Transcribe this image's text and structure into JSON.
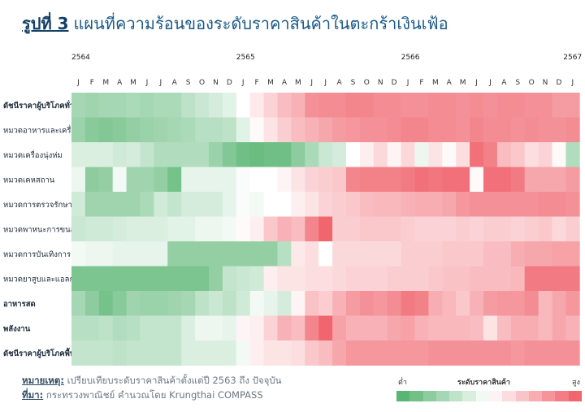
{
  "figure": {
    "number": "รูปที่ 3",
    "title": "แผนที่ความร้อนของระดับราคาสินค้าในตะกร้าเงินเฟ้อ"
  },
  "note": {
    "label": "หมายเหตุ:",
    "text": "เปรียบเทียบระดับราคาสินค้าตั้งแต่ปี 2563 ถึง ปัจจุบัน"
  },
  "source": {
    "label": "ที่มา:",
    "text": "กระทรวงพาณิชย์ คำนวณโดย Krungthai COMPASS"
  },
  "legend": {
    "title": "ระดับราคาสินค้า",
    "low": "ต่ำ",
    "high": "สูง"
  },
  "colors": {
    "low": "#4caf68",
    "mid": "#ffffff",
    "high": "#ef5a64"
  },
  "chart_data": {
    "type": "heatmap",
    "title": "แผนที่ความร้อนของระดับราคาสินค้าในตะกร้าเงินเฟ้อ",
    "years": [
      "2564",
      "2565",
      "2566",
      "2567"
    ],
    "months": [
      "J",
      "F",
      "M",
      "A",
      "M",
      "J",
      "J",
      "A",
      "S",
      "O",
      "N",
      "D",
      "J",
      "F",
      "M",
      "A",
      "M",
      "J",
      "J",
      "A",
      "S",
      "O",
      "N",
      "D",
      "J",
      "F",
      "M",
      "A",
      "M",
      "J",
      "J",
      "A",
      "S",
      "O",
      "N",
      "D",
      "J"
    ],
    "scale": [
      -3,
      3
    ],
    "rows": [
      {
        "label": "ดัชนีราคาผู้บริโภคทั่วไป",
        "bold": true,
        "values": [
          -1.5,
          -1.6,
          -1.5,
          -1.5,
          -1.4,
          -1.5,
          -1.4,
          -1.4,
          -1.1,
          -0.9,
          -0.7,
          -0.5,
          0,
          0.4,
          0.8,
          1.2,
          1.4,
          2.0,
          2.1,
          2.1,
          2.2,
          2.2,
          2.1,
          2.1,
          2.0,
          2.0,
          2.1,
          2.1,
          2.0,
          2.1,
          2.0,
          2.1,
          2.1,
          2.0,
          2.0,
          1.8,
          1.8
        ]
      },
      {
        "label": "หมวดอาหารและเครื่องดื่ม",
        "bold": false,
        "values": [
          -1.7,
          -2.0,
          -2.1,
          -2.0,
          -1.8,
          -1.7,
          -1.6,
          -1.5,
          -1.4,
          -1.2,
          -1.2,
          -1.1,
          -0.5,
          0.1,
          0.5,
          0.9,
          1.2,
          1.4,
          1.6,
          1.8,
          1.9,
          2.0,
          2.0,
          2.1,
          2.2,
          2.2,
          2.1,
          2.1,
          2.0,
          2.2,
          2.1,
          2.1,
          2.0,
          2.1,
          2.0,
          2.0,
          2.1
        ]
      },
      {
        "label": "หมวดเครื่องนุ่งห่ม",
        "bold": false,
        "values": [
          -0.6,
          -0.6,
          -0.6,
          -0.8,
          -0.7,
          -1.0,
          -1.3,
          -1.3,
          -1.3,
          -1.3,
          -1.7,
          -2.1,
          -2.4,
          -2.5,
          -2.4,
          -2.4,
          -1.9,
          -1.4,
          -0.9,
          -0.7,
          0,
          0.3,
          0.7,
          0.2,
          0.7,
          -0.3,
          0.5,
          0.1,
          0.6,
          2.6,
          2.3,
          1.2,
          1.0,
          0.6,
          0.8,
          0.1,
          -1.3
        ]
      },
      {
        "label": "หมวดเคหสถาน",
        "bold": false,
        "values": [
          -0.3,
          -1.9,
          -1.8,
          -0.2,
          -1.6,
          -1.6,
          -1.8,
          -2.3,
          -0.4,
          -0.4,
          -0.4,
          -0.4,
          -0.1,
          0,
          0,
          0.2,
          0.5,
          0.8,
          0.9,
          1.0,
          2.2,
          2.3,
          2.3,
          2.3,
          2.4,
          2.6,
          2.5,
          2.6,
          2.6,
          0.1,
          2.6,
          2.6,
          2.4,
          1.6,
          1.6,
          1.6,
          1.8
        ]
      },
      {
        "label": "หมวดการตรวจรักษาฯ",
        "bold": false,
        "values": [
          -0.8,
          -1.6,
          -1.6,
          -1.6,
          -1.6,
          -1.4,
          -0.8,
          -1.0,
          -0.7,
          -0.7,
          -0.7,
          -0.4,
          -0.1,
          -0.2,
          0,
          0,
          0.3,
          0.5,
          0.8,
          0.9,
          1.0,
          1.2,
          1.3,
          1.3,
          1.4,
          1.5,
          1.5,
          1.6,
          1.9,
          2.0,
          2.0,
          2.0,
          2.0,
          2.0,
          2.1,
          2.1,
          2.0
        ]
      },
      {
        "label": "หมวดพาหนะการขนส่งฯ",
        "bold": false,
        "values": [
          -0.9,
          -0.8,
          -0.8,
          -0.7,
          -0.6,
          -0.6,
          -0.6,
          -0.5,
          -0.5,
          -0.3,
          -0.3,
          -0.2,
          0.1,
          0.3,
          1.0,
          1.4,
          1.2,
          2.2,
          2.8,
          0.9,
          0.9,
          1.0,
          1.0,
          1.0,
          0.9,
          0.8,
          0.8,
          0.8,
          0.9,
          0.8,
          0.9,
          0.9,
          0.8,
          0.9,
          1.0,
          0.7,
          0.9
        ]
      },
      {
        "label": "หมวดการบันเทิงการอ่านฯ",
        "bold": false,
        "values": [
          -0.2,
          -0.3,
          -0.3,
          -0.4,
          -0.4,
          -0.4,
          -0.4,
          -1.8,
          -1.8,
          -1.8,
          -1.8,
          -1.8,
          -1.8,
          -1.8,
          -1.8,
          -1.2,
          0.4,
          0.6,
          0,
          0.7,
          0.7,
          0.7,
          0.7,
          0.7,
          0.9,
          0.9,
          0.9,
          1.0,
          1.0,
          1.0,
          1.2,
          1.2,
          1.5,
          1.6,
          1.6,
          1.7,
          1.7
        ]
      },
      {
        "label": "หมวดยาสูบและแอลกอฮอล์",
        "bold": false,
        "values": [
          -2.2,
          -2.2,
          -2.2,
          -2.2,
          -2.2,
          -2.2,
          -2.2,
          -2.2,
          -2.2,
          -2.2,
          -1.8,
          -1.0,
          -0.9,
          -0.8,
          0.3,
          0.5,
          0.5,
          0.6,
          0.6,
          0.7,
          0.8,
          0.8,
          0.8,
          0.9,
          0.9,
          0.9,
          1.0,
          1.1,
          1.1,
          1.2,
          1.2,
          1.2,
          1.3,
          2.4,
          2.4,
          2.4,
          2.4
        ]
      },
      {
        "label": "อาหารสด",
        "bold": true,
        "values": [
          -1.5,
          -1.9,
          -2.3,
          -2.0,
          -1.6,
          -1.7,
          -1.7,
          -1.6,
          -1.5,
          -1.1,
          -0.9,
          -1.1,
          -0.8,
          -0.2,
          -0.4,
          -0.7,
          0.2,
          1.1,
          0.9,
          1.4,
          1.8,
          2.0,
          1.9,
          2.1,
          2.4,
          2.3,
          1.5,
          1.3,
          1.0,
          1.4,
          1.8,
          1.9,
          1.9,
          2.1,
          1.3,
          1.6,
          1.9
        ]
      },
      {
        "label": "พลังงาน",
        "bold": true,
        "values": [
          -1.2,
          -1.2,
          -1.1,
          -1.3,
          -1.2,
          -1.0,
          -1.0,
          -1.0,
          -0.6,
          -0.3,
          -0.3,
          -0.4,
          0.2,
          0.3,
          0.8,
          1.4,
          1.2,
          2.2,
          2.8,
          1.7,
          1.4,
          1.4,
          1.4,
          1.6,
          1.7,
          1.4,
          1.3,
          1.3,
          1.3,
          1.2,
          0.5,
          1.2,
          1.5,
          1.5,
          1.3,
          1.6,
          1.4
        ]
      },
      {
        "label": "ดัชนีราคาผู้บริโภคพื้นฐาน",
        "bold": true,
        "values": [
          -1.0,
          -1.0,
          -1.0,
          -1.1,
          -1.0,
          -1.0,
          -1.0,
          -1.0,
          -0.6,
          -0.6,
          -0.6,
          -0.6,
          -0.2,
          0.3,
          0.5,
          0.5,
          0.6,
          1.0,
          1.2,
          1.6,
          1.9,
          1.9,
          1.9,
          1.9,
          1.9,
          1.9,
          2.0,
          2.0,
          2.0,
          2.0,
          2.0,
          2.0,
          1.9,
          2.0,
          2.0,
          2.0,
          2.0
        ]
      }
    ]
  }
}
